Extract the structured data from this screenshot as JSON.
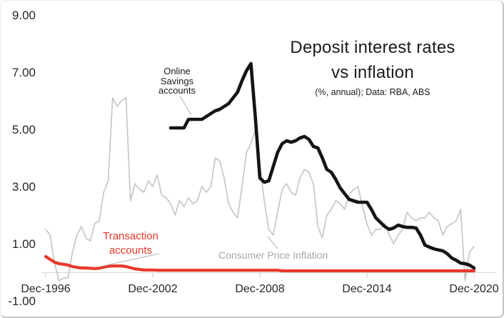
{
  "window": {
    "background": "#ffffff",
    "edge_color": "#c4c4c4"
  },
  "title": {
    "line1": "Deposit interest rates",
    "line2": "vs inflation",
    "subtitle": "(%, annual); Data: RBA, ABS"
  },
  "colors": {
    "online_savings_line": "#141414",
    "transaction_line": "#e8382a",
    "cpi_line": "#c6c6c6",
    "cpi_label_text": "#a8a8a8",
    "axis_line": "#dcdcdc",
    "tick_mark": "#cfcfcf",
    "leader_line": "#b3b3b3",
    "tick_text": "#262626"
  },
  "annotations": {
    "online_savings": {
      "line1": "Online",
      "line2": "Savings",
      "line3": "accounts"
    },
    "transaction": {
      "line1": "Transaction",
      "line2": "accounts"
    },
    "cpi": {
      "label": "Consumer Price Inflation"
    }
  },
  "axes": {
    "y_ticks": [
      {
        "label": "9.00",
        "value": 9
      },
      {
        "label": "7.00",
        "value": 7
      },
      {
        "label": "5.00",
        "value": 5
      },
      {
        "label": "3.00",
        "value": 3
      },
      {
        "label": "1.00",
        "value": 1
      },
      {
        "label": "-1.00",
        "value": -1
      }
    ],
    "x_ticks": [
      {
        "label": "Dec-1996",
        "index": 0
      },
      {
        "label": "Dec-2002",
        "index": 24
      },
      {
        "label": "Dec-2008",
        "index": 48
      },
      {
        "label": "Dec-2014",
        "index": 72
      },
      {
        "label": "Dec-2020",
        "index": 96
      }
    ]
  },
  "chart_data": {
    "type": "line",
    "title": "Deposit interest rates vs inflation",
    "subtitle": "(%, annual); Data: RBA, ABS",
    "xlabel": "",
    "ylabel": "%, annual",
    "ylim": [
      -1,
      9
    ],
    "grid": false,
    "legend_position": "inline-annotations",
    "x_axis": {
      "unit": "quarter",
      "start": "Dec-1996",
      "end": "Dec-2020",
      "points": 97
    },
    "series": [
      {
        "name": "Consumer Price Inflation",
        "color": "#c6c6c6",
        "stroke_width": 1.7,
        "start_index": 0,
        "values": [
          1.5,
          1.3,
          0.3,
          -0.3,
          -0.2,
          -0.2,
          0.7,
          1.3,
          1.6,
          1.2,
          1.1,
          1.7,
          1.8,
          2.8,
          3.2,
          6.1,
          5.8,
          6.0,
          6.1,
          2.5,
          3.1,
          2.9,
          2.8,
          3.2,
          3.0,
          3.4,
          2.7,
          2.6,
          2.4,
          2.0,
          2.5,
          2.3,
          2.6,
          2.4,
          2.5,
          3.0,
          2.8,
          3.0,
          4.0,
          3.9,
          3.3,
          2.4,
          2.1,
          1.9,
          3.0,
          4.2,
          4.5,
          5.0,
          3.7,
          2.5,
          1.5,
          1.3,
          2.1,
          2.9,
          3.1,
          2.8,
          2.7,
          3.3,
          3.6,
          3.5,
          3.1,
          1.6,
          1.2,
          2.0,
          2.2,
          2.5,
          2.4,
          2.2,
          2.7,
          2.9,
          3.0,
          2.3,
          1.7,
          1.3,
          1.5,
          1.5,
          1.7,
          1.3,
          1.0,
          1.3,
          1.5,
          2.1,
          1.9,
          1.8,
          1.9,
          1.9,
          2.1,
          1.9,
          1.8,
          1.3,
          1.6,
          1.7,
          1.8,
          2.2,
          -0.3,
          0.7,
          0.9
        ]
      },
      {
        "name": "Transaction accounts",
        "color": "#e8382a",
        "stroke_width": 4.2,
        "start_index": 0,
        "values": [
          0.55,
          0.45,
          0.35,
          0.3,
          0.28,
          0.25,
          0.2,
          0.17,
          0.15,
          0.15,
          0.14,
          0.13,
          0.14,
          0.18,
          0.21,
          0.22,
          0.22,
          0.22,
          0.2,
          0.16,
          0.12,
          0.1,
          0.08,
          0.08,
          0.08,
          0.07,
          0.07,
          0.07,
          0.07,
          0.07,
          0.07,
          0.07,
          0.07,
          0.07,
          0.07,
          0.07,
          0.07,
          0.07,
          0.07,
          0.07,
          0.07,
          0.07,
          0.07,
          0.07,
          0.07,
          0.07,
          0.07,
          0.07,
          0.07,
          0.07,
          0.07,
          0.07,
          0.07,
          0.05,
          0.05,
          0.05,
          0.05,
          0.05,
          0.05,
          0.05,
          0.05,
          0.05,
          0.05,
          0.05,
          0.05,
          0.05,
          0.05,
          0.05,
          0.05,
          0.05,
          0.05,
          0.05,
          0.05,
          0.05,
          0.05,
          0.05,
          0.05,
          0.05,
          0.05,
          0.05,
          0.05,
          0.05,
          0.05,
          0.05,
          0.05,
          0.05,
          0.05,
          0.05,
          0.05,
          0.05,
          0.05,
          0.05,
          0.05,
          0.05,
          0.05,
          0.05,
          0.05
        ]
      },
      {
        "name": "Online Savings accounts",
        "color": "#141414",
        "stroke_width": 4.6,
        "start_index": 28,
        "values": [
          5.05,
          5.05,
          5.05,
          5.05,
          5.35,
          5.35,
          5.35,
          5.35,
          5.45,
          5.55,
          5.65,
          5.7,
          5.8,
          5.9,
          6.1,
          6.3,
          6.7,
          7.05,
          7.3,
          5.4,
          3.3,
          3.15,
          3.2,
          3.7,
          4.2,
          4.5,
          4.6,
          4.55,
          4.6,
          4.7,
          4.75,
          4.65,
          4.4,
          4.35,
          4.0,
          3.6,
          3.5,
          3.25,
          2.95,
          2.75,
          2.55,
          2.5,
          2.45,
          2.45,
          2.45,
          2.2,
          1.9,
          1.75,
          1.6,
          1.5,
          1.55,
          1.65,
          1.6,
          1.57,
          1.57,
          1.55,
          1.3,
          0.95,
          0.88,
          0.82,
          0.78,
          0.75,
          0.65,
          0.5,
          0.42,
          0.32,
          0.3,
          0.25,
          0.15
        ]
      }
    ]
  }
}
